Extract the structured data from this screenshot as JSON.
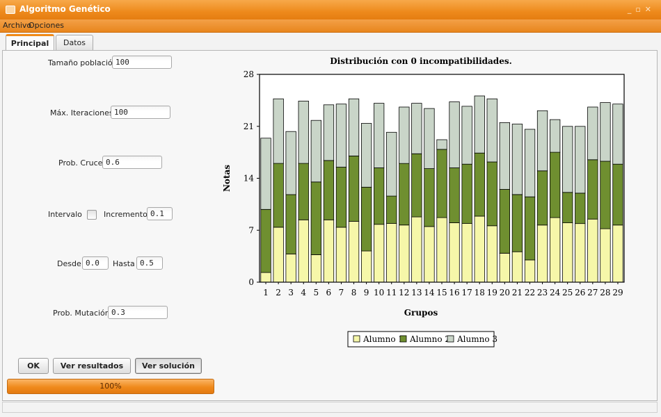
{
  "window": {
    "title": "Algoritmo Genético"
  },
  "menu": [
    "Archivo",
    "Opciones"
  ],
  "tabs": [
    "Principal",
    "Datos"
  ],
  "form": {
    "poblacion": {
      "label": "Tamaño población",
      "value": "100"
    },
    "iteraciones": {
      "label": "Máx. Iteraciones",
      "value": "100"
    },
    "cruce": {
      "label": "Prob. Cruce",
      "value": "0.6"
    },
    "intervalo": {
      "label": "Intervalo",
      "checked": false
    },
    "incremento": {
      "label": "Incremento",
      "value": "0.1"
    },
    "desde": {
      "label": "Desde",
      "value": "0.0"
    },
    "hasta": {
      "label": "Hasta",
      "value": "0.5"
    },
    "mutacion": {
      "label": "Prob. Mutación",
      "value": "0.3"
    }
  },
  "buttons": {
    "ok": "OK",
    "resultados": "Ver resultados",
    "solucion": "Ver solución"
  },
  "progress": {
    "label": "100%",
    "value": 1.0
  },
  "chart_data": {
    "type": "bar",
    "stacked": true,
    "title": "Distribución con 0 incompatibilidades.",
    "xlabel": "Grupos",
    "ylabel": "Notas",
    "ylim": [
      0,
      28
    ],
    "yticks": [
      0,
      7,
      14,
      21,
      28
    ],
    "grid": false,
    "legend_position": "bottom",
    "categories": [
      "1",
      "2",
      "3",
      "4",
      "5",
      "6",
      "7",
      "8",
      "9",
      "10",
      "11",
      "12",
      "13",
      "14",
      "15",
      "16",
      "17",
      "18",
      "19",
      "20",
      "21",
      "22",
      "23",
      "24",
      "25",
      "26",
      "27",
      "28",
      "29"
    ],
    "series": [
      {
        "name": "Alumno 1",
        "values": [
          1.3,
          7.4,
          3.8,
          8.4,
          3.7,
          8.4,
          7.4,
          8.2,
          4.2,
          7.8,
          7.9,
          7.7,
          8.8,
          7.5,
          8.7,
          8.0,
          7.9,
          8.9,
          7.6,
          3.9,
          4.1,
          3.0,
          7.7,
          8.7,
          8.0,
          7.9,
          8.5,
          7.2,
          7.7
        ]
      },
      {
        "name": "Alumno 2",
        "values": [
          8.5,
          8.6,
          8.0,
          7.6,
          9.8,
          8.0,
          8.1,
          8.8,
          8.6,
          7.6,
          3.7,
          8.3,
          8.5,
          7.8,
          9.2,
          7.4,
          8.0,
          8.5,
          8.6,
          8.6,
          7.7,
          8.5,
          7.3,
          8.8,
          4.1,
          4.1,
          8.0,
          9.1,
          8.2
        ]
      },
      {
        "name": "Alumno 3",
        "values": [
          9.6,
          8.7,
          8.5,
          8.4,
          8.3,
          7.5,
          8.5,
          7.7,
          8.6,
          8.7,
          8.6,
          7.6,
          6.8,
          8.1,
          1.3,
          8.9,
          7.8,
          7.7,
          8.5,
          9.0,
          9.5,
          9.1,
          8.1,
          4.4,
          8.9,
          9.0,
          7.1,
          7.9,
          8.1
        ]
      }
    ],
    "colors": [
      "#f6f7a9",
      "#6f8f30",
      "#c9d5c8"
    ],
    "highlight_colors": {
      "stroke": "#000000"
    }
  }
}
